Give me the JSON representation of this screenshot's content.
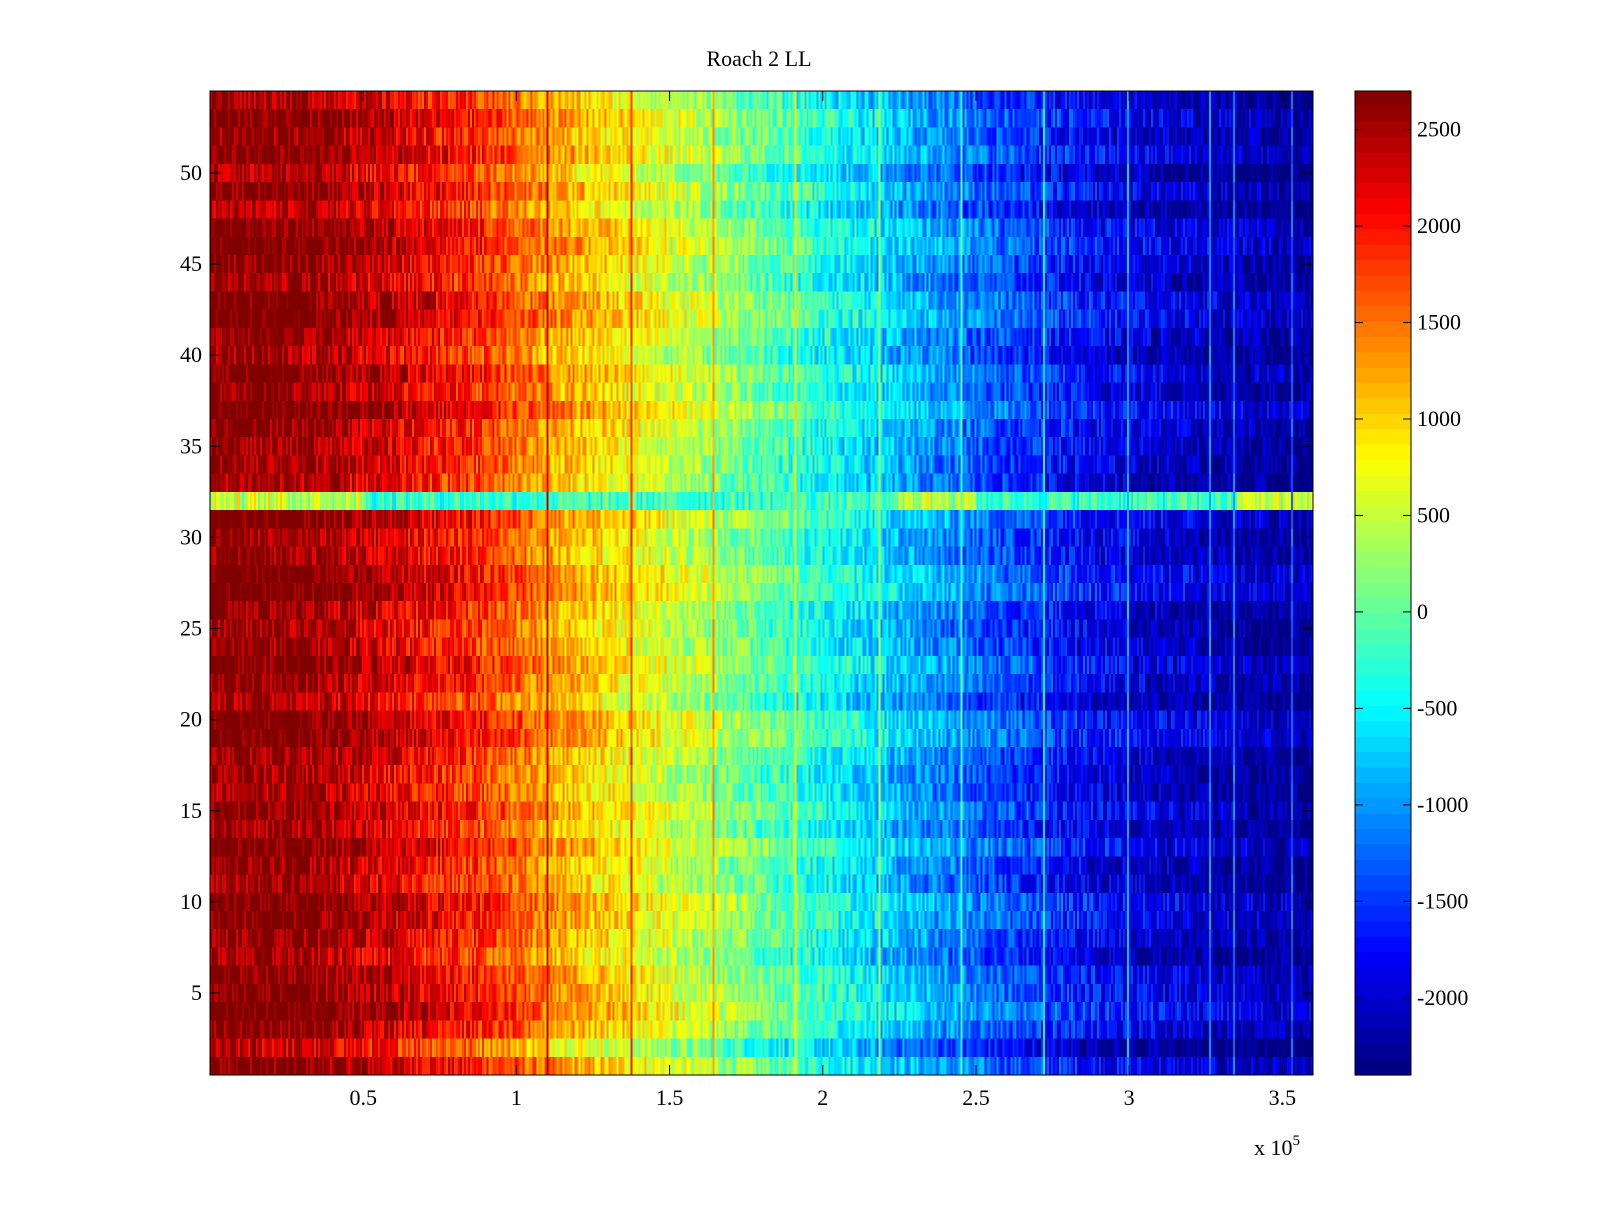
{
  "chart_data": {
    "type": "heatmap",
    "title": "Roach 2 LL",
    "xlabel": "",
    "ylabel": "",
    "x_exponent_label": "x 10",
    "x_exponent_power": "5",
    "xlim": [
      0,
      360000
    ],
    "ylim": [
      0.5,
      54.5
    ],
    "x_ticks": [
      50000,
      100000,
      150000,
      200000,
      250000,
      300000,
      350000
    ],
    "x_tick_labels": [
      "0.5",
      "1",
      "1.5",
      "2",
      "2.5",
      "3",
      "3.5"
    ],
    "y_ticks": [
      5,
      10,
      15,
      20,
      25,
      30,
      35,
      40,
      45,
      50
    ],
    "y_tick_labels": [
      "5",
      "10",
      "15",
      "20",
      "25",
      "30",
      "35",
      "40",
      "45",
      "50"
    ],
    "rows": 54,
    "colorscale": "jet",
    "clim": [
      -2400,
      2700
    ],
    "colorbar_ticks": [
      2500,
      2000,
      1500,
      1000,
      500,
      0,
      -500,
      -1000,
      -1500,
      -2000
    ],
    "colorbar_tick_labels": [
      "2500",
      "2000",
      "1500",
      "1000",
      "500",
      "0",
      "-500",
      "-1000",
      "-1500",
      "-2000"
    ],
    "value_trend": {
      "x": [
        0,
        30000,
        60000,
        90000,
        110000,
        140000,
        170000,
        200000,
        230000,
        260000,
        290000,
        320000,
        360000
      ],
      "value": [
        2700,
        2650,
        2250,
        1800,
        1300,
        750,
        200,
        -350,
        -900,
        -1400,
        -1800,
        -2050,
        -2300
      ]
    },
    "anomalous_rows": [
      {
        "row": 32,
        "description": "",
        "base_value": -200
      },
      {
        "row": 2,
        "base_shift": -250
      },
      {
        "row": 18,
        "base_shift": -200
      },
      {
        "row": 11,
        "base_shift": -250
      },
      {
        "row": 8,
        "base_shift": -200
      }
    ],
    "vertical_lines": [
      110000,
      137000,
      164000,
      191000,
      218000,
      245000,
      272000,
      299000,
      326000,
      334000,
      353000
    ]
  }
}
